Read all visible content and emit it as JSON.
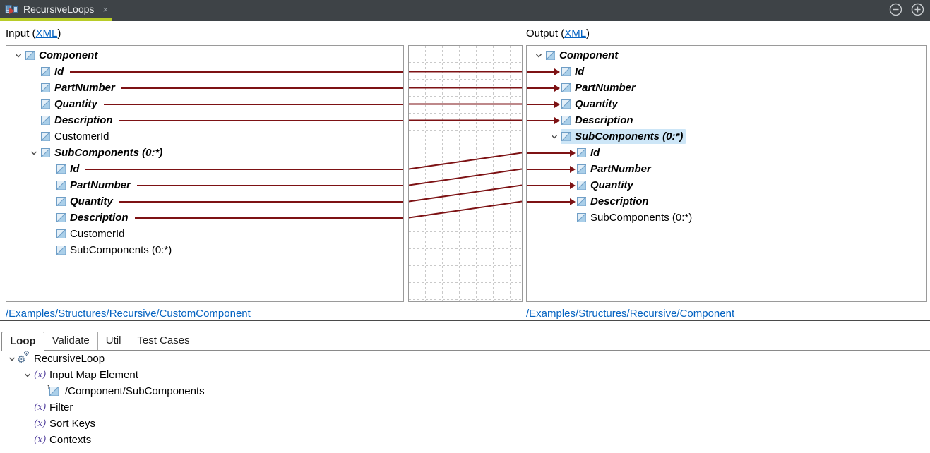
{
  "titlebar": {
    "tab_label": "RecursiveLoops",
    "close_label": "×"
  },
  "headers": {
    "input_prefix": "Input (",
    "input_link": "XML",
    "output_prefix": "Output (",
    "suffix": ")"
  },
  "input_tree": {
    "nodes": [
      {
        "label": "Component",
        "level": 0,
        "mapped": true,
        "expander": true,
        "line": false
      },
      {
        "label": "Id",
        "level": 1,
        "mapped": true,
        "expander": false,
        "line": true
      },
      {
        "label": "PartNumber",
        "level": 1,
        "mapped": true,
        "expander": false,
        "line": true
      },
      {
        "label": "Quantity",
        "level": 1,
        "mapped": true,
        "expander": false,
        "line": true
      },
      {
        "label": "Description",
        "level": 1,
        "mapped": true,
        "expander": false,
        "line": true
      },
      {
        "label": "CustomerId",
        "level": 1,
        "mapped": false,
        "expander": false,
        "line": false
      },
      {
        "label": "SubComponents (0:*)",
        "level": 1,
        "mapped": true,
        "expander": true,
        "line": false
      },
      {
        "label": "Id",
        "level": 2,
        "mapped": true,
        "expander": false,
        "line": true
      },
      {
        "label": "PartNumber",
        "level": 2,
        "mapped": true,
        "expander": false,
        "line": true
      },
      {
        "label": "Quantity",
        "level": 2,
        "mapped": true,
        "expander": false,
        "line": true
      },
      {
        "label": "Description",
        "level": 2,
        "mapped": true,
        "expander": false,
        "line": true
      },
      {
        "label": "CustomerId",
        "level": 2,
        "mapped": false,
        "expander": false,
        "line": false
      },
      {
        "label": "SubComponents (0:*)",
        "level": 2,
        "mapped": false,
        "expander": false,
        "line": false
      }
    ]
  },
  "output_tree": {
    "nodes": [
      {
        "label": "Component",
        "level": 0,
        "mapped": true,
        "expander": true,
        "arrow": false,
        "selected": false
      },
      {
        "label": "Id",
        "level": 1,
        "mapped": true,
        "expander": false,
        "arrow": true,
        "selected": false
      },
      {
        "label": "PartNumber",
        "level": 1,
        "mapped": true,
        "expander": false,
        "arrow": true,
        "selected": false
      },
      {
        "label": "Quantity",
        "level": 1,
        "mapped": true,
        "expander": false,
        "arrow": true,
        "selected": false
      },
      {
        "label": "Description",
        "level": 1,
        "mapped": true,
        "expander": false,
        "arrow": true,
        "selected": false
      },
      {
        "label": "SubComponents (0:*)",
        "level": 1,
        "mapped": true,
        "expander": true,
        "arrow": false,
        "selected": true
      },
      {
        "label": "Id",
        "level": 2,
        "mapped": true,
        "expander": false,
        "arrow": true,
        "selected": false
      },
      {
        "label": "PartNumber",
        "level": 2,
        "mapped": true,
        "expander": false,
        "arrow": true,
        "selected": false
      },
      {
        "label": "Quantity",
        "level": 2,
        "mapped": true,
        "expander": false,
        "arrow": true,
        "selected": false
      },
      {
        "label": "Description",
        "level": 2,
        "mapped": true,
        "expander": false,
        "arrow": true,
        "selected": false
      },
      {
        "label": "SubComponents (0:*)",
        "level": 2,
        "mapped": false,
        "expander": false,
        "arrow": false,
        "selected": false
      }
    ]
  },
  "mappings": [
    {
      "source": "/Component/Id",
      "target": "/Component/Id",
      "si": 1,
      "ti": 1
    },
    {
      "source": "/Component/PartNumber",
      "target": "/Component/PartNumber",
      "si": 2,
      "ti": 2
    },
    {
      "source": "/Component/Quantity",
      "target": "/Component/Quantity",
      "si": 3,
      "ti": 3
    },
    {
      "source": "/Component/Description",
      "target": "/Component/Description",
      "si": 4,
      "ti": 4
    },
    {
      "source": "/Component/SubComponents/Id",
      "target": "/Component/SubComponents/Id",
      "si": 7,
      "ti": 6
    },
    {
      "source": "/Component/SubComponents/PartNumber",
      "target": "/Component/SubComponents/PartNumber",
      "si": 8,
      "ti": 7
    },
    {
      "source": "/Component/SubComponents/Quantity",
      "target": "/Component/SubComponents/Quantity",
      "si": 9,
      "ti": 8
    },
    {
      "source": "/Component/SubComponents/Description",
      "target": "/Component/SubComponents/Description",
      "si": 10,
      "ti": 9
    }
  ],
  "links": {
    "input": "/Examples/Structures/Recursive/CustomComponent",
    "output": "/Examples/Structures/Recursive/Component"
  },
  "bottom": {
    "tabs": [
      {
        "label": "Loop",
        "active": true
      },
      {
        "label": "Validate",
        "active": false
      },
      {
        "label": "Util",
        "active": false
      },
      {
        "label": "Test Cases",
        "active": false
      }
    ],
    "tree": [
      {
        "label": "RecursiveLoop",
        "level": 0,
        "icon": "gears",
        "expander": true
      },
      {
        "label": "Input Map Element",
        "level": 1,
        "icon": "fx",
        "expander": true
      },
      {
        "label": "/Component/SubComponents",
        "level": 2,
        "icon": "element-ref",
        "expander": false
      },
      {
        "label": "Filter",
        "level": 1,
        "icon": "fx",
        "expander": false
      },
      {
        "label": "Sort Keys",
        "level": 1,
        "icon": "fx",
        "expander": false
      },
      {
        "label": "Contexts",
        "level": 1,
        "icon": "fx",
        "expander": false
      }
    ]
  },
  "colors": {
    "accent_green": "#B8CC28",
    "map_line": "#7D1214",
    "selection": "#CDE6F7",
    "link": "#0563C1",
    "titlebar_bg": "#3E4347",
    "fx_purple": "#53419E"
  }
}
